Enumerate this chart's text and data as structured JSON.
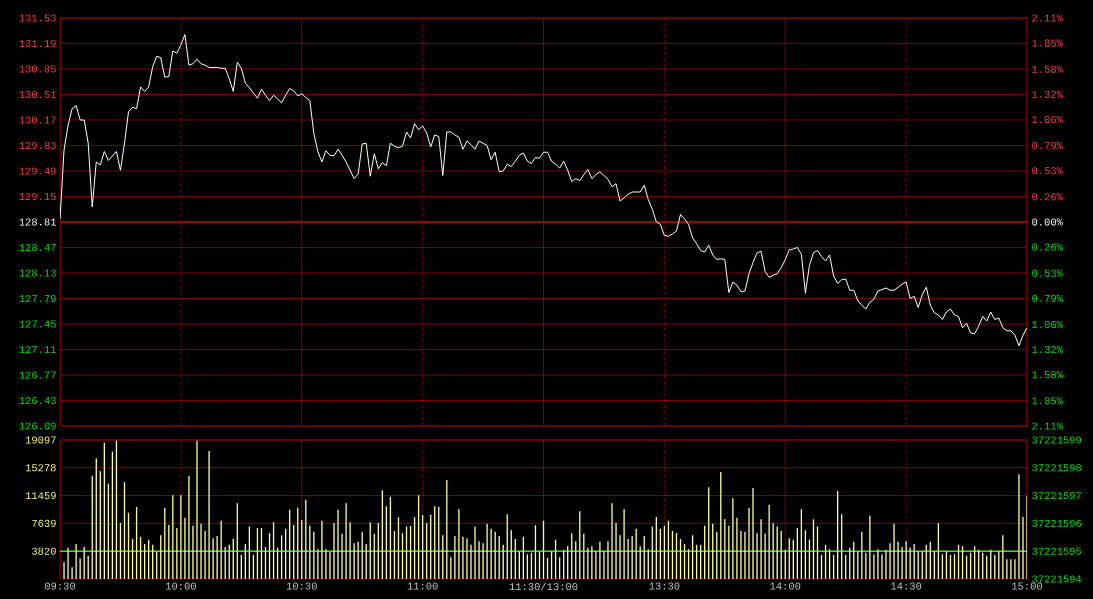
{
  "chart_data": [
    {
      "type": "line",
      "color": "#ffffff",
      "categories": [
        null,
        null,
        null,
        null,
        null,
        null,
        null,
        null,
        null,
        null,
        null,
        null,
        null,
        null,
        null,
        null,
        null,
        null,
        null,
        null,
        null,
        null,
        null,
        null,
        null,
        null,
        null,
        null,
        null,
        null,
        null,
        null,
        null,
        null,
        null,
        null,
        null,
        null,
        null,
        null,
        null,
        null,
        null,
        null,
        null,
        null,
        null,
        null,
        null,
        null,
        null,
        null,
        null,
        null,
        null,
        null,
        null,
        null,
        null,
        null,
        null,
        null,
        null,
        null,
        null,
        null,
        null,
        null,
        null,
        null,
        null,
        null,
        null,
        null,
        null,
        null,
        null,
        null,
        null,
        null,
        null,
        null,
        null,
        null,
        null,
        null,
        null,
        null,
        null,
        null,
        null,
        null,
        null,
        null,
        null,
        null,
        null,
        null,
        null,
        null,
        null,
        null,
        null,
        null,
        null,
        null,
        null,
        null,
        null,
        null,
        null,
        null,
        null,
        null,
        null,
        null,
        null,
        null,
        null,
        null,
        null,
        null,
        null,
        null,
        null,
        null,
        null,
        null,
        null,
        null,
        null,
        null,
        null,
        null,
        null,
        null,
        null,
        null,
        null,
        null,
        null,
        null,
        null,
        null,
        null,
        null,
        null,
        null,
        null,
        null,
        null,
        null,
        null,
        null,
        null,
        null,
        null,
        null,
        null,
        null,
        null,
        null,
        null,
        null,
        null,
        null,
        null,
        null,
        null,
        null,
        null,
        null,
        null,
        null,
        null,
        null,
        null,
        null,
        null,
        null,
        null,
        null,
        null,
        null,
        null,
        null,
        null,
        null,
        null,
        null,
        null,
        null,
        null,
        null,
        null,
        null,
        null,
        null,
        null,
        null,
        null,
        null,
        null,
        null,
        null,
        null,
        null,
        null,
        null,
        null,
        null,
        null,
        null,
        null,
        null,
        null,
        null,
        null,
        null,
        null,
        null,
        null,
        null,
        null,
        null,
        null,
        null,
        null,
        null,
        null,
        null,
        null,
        null,
        null,
        null,
        null,
        null,
        null,
        null,
        null,
        null
      ],
      "values": [
        128.85,
        129.77,
        130.1,
        130.32,
        130.36,
        130.17,
        130.17,
        129.86,
        129.01,
        129.61,
        129.57,
        129.75,
        129.63,
        129.69,
        129.75,
        129.5,
        129.86,
        130.28,
        130.34,
        130.32,
        130.61,
        130.55,
        130.61,
        130.88,
        131.02,
        131.0,
        130.74,
        130.75,
        131.09,
        131.06,
        131.17,
        131.31,
        130.9,
        130.92,
        130.98,
        130.92,
        130.9,
        130.87,
        130.87,
        130.87,
        130.86,
        130.86,
        130.72,
        130.55,
        130.94,
        130.86,
        130.66,
        130.6,
        130.53,
        130.46,
        130.58,
        130.5,
        130.43,
        130.5,
        130.45,
        130.4,
        130.5,
        130.59,
        130.56,
        130.49,
        130.52,
        130.47,
        130.43,
        129.99,
        129.75,
        129.61,
        129.76,
        129.7,
        129.69,
        129.78,
        129.7,
        129.61,
        129.5,
        129.39,
        129.45,
        129.85,
        129.86,
        129.42,
        129.72,
        129.52,
        129.6,
        129.56,
        129.86,
        129.82,
        129.8,
        129.82,
        130.01,
        129.93,
        130.12,
        130.04,
        130.09,
        130.0,
        129.81,
        129.97,
        129.95,
        129.43,
        130.01,
        130.01,
        129.97,
        129.94,
        129.78,
        129.89,
        129.84,
        129.78,
        129.89,
        129.86,
        129.83,
        129.64,
        129.74,
        129.48,
        129.49,
        129.58,
        129.55,
        129.62,
        129.7,
        129.73,
        129.62,
        129.59,
        129.67,
        129.66,
        129.74,
        129.74,
        129.62,
        129.58,
        129.53,
        129.62,
        129.5,
        129.35,
        129.39,
        129.36,
        129.44,
        129.51,
        129.39,
        129.44,
        129.48,
        129.43,
        129.38,
        129.28,
        129.32,
        129.09,
        129.13,
        129.18,
        129.21,
        129.21,
        129.21,
        129.3,
        129.11,
        128.98,
        128.81,
        128.78,
        128.63,
        128.62,
        128.65,
        128.69,
        128.91,
        128.85,
        128.78,
        128.6,
        128.52,
        128.43,
        128.41,
        128.5,
        128.37,
        128.31,
        128.32,
        128.31,
        127.87,
        128.01,
        127.97,
        127.88,
        127.89,
        128.12,
        128.27,
        128.4,
        128.42,
        128.15,
        128.07,
        128.1,
        128.12,
        128.2,
        128.31,
        128.44,
        128.45,
        128.47,
        128.38,
        127.86,
        128.23,
        128.4,
        128.43,
        128.35,
        128.29,
        128.37,
        128.09,
        127.99,
        128.04,
        128.05,
        127.9,
        127.9,
        127.76,
        127.7,
        127.65,
        127.74,
        127.78,
        127.89,
        127.91,
        127.93,
        127.9,
        127.9,
        127.94,
        127.98,
        128.01,
        127.79,
        127.82,
        127.67,
        127.84,
        127.94,
        127.7,
        127.6,
        127.57,
        127.51,
        127.61,
        127.65,
        127.57,
        127.55,
        127.4,
        127.46,
        127.33,
        127.32,
        127.42,
        127.55,
        127.49,
        127.61,
        127.51,
        127.53,
        127.4,
        127.36,
        127.36,
        127.3,
        127.16,
        127.3,
        127.4
      ],
      "ylim": [
        126.09,
        131.53
      ],
      "yticks": [
        126.09,
        126.43,
        126.77,
        127.11,
        127.45,
        127.79,
        128.13,
        128.47,
        128.81,
        129.15,
        129.49,
        129.83,
        130.17,
        130.51,
        130.85,
        131.19,
        131.53
      ],
      "y2lim": [
        -2.11,
        2.11
      ],
      "y2ticks": [
        {
          "value": -2.11,
          "label": "2.11%"
        },
        {
          "value": -1.85,
          "label": "1.85%"
        },
        {
          "value": -1.58,
          "label": "1.58%"
        },
        {
          "value": -1.32,
          "label": "1.32%"
        },
        {
          "value": -1.06,
          "label": "1.06%"
        },
        {
          "value": -0.79,
          "label": "0.79%"
        },
        {
          "value": -0.53,
          "label": "0.53%"
        },
        {
          "value": -0.26,
          "label": "0.26%"
        },
        {
          "value": 0,
          "label": "0.00%"
        },
        {
          "value": 0.26,
          "label": "0.26%"
        },
        {
          "value": 0.53,
          "label": "0.53%"
        },
        {
          "value": 0.79,
          "label": "0.79%"
        },
        {
          "value": 1.06,
          "label": "1.06%"
        },
        {
          "value": 1.32,
          "label": "1.32%"
        },
        {
          "value": 1.58,
          "label": "1.58%"
        },
        {
          "value": 1.85,
          "label": "1.85%"
        },
        {
          "value": 2.11,
          "label": "2.11%"
        }
      ],
      "ref_lines": [
        {
          "axis": "y",
          "value": 128.81,
          "color": "#c00000"
        }
      ],
      "grid": true,
      "tick_labels": "y"
    },
    {
      "type": "bar",
      "color": "#ffff99",
      "categories": [
        "09:30",
        null,
        null,
        null,
        null,
        null,
        null,
        null,
        null,
        null,
        null,
        null,
        null,
        null,
        null,
        null,
        null,
        null,
        null,
        null,
        null,
        null,
        null,
        null,
        null,
        null,
        null,
        null,
        null,
        null,
        "10:00",
        null,
        null,
        null,
        null,
        null,
        null,
        null,
        null,
        null,
        null,
        null,
        null,
        null,
        null,
        null,
        null,
        null,
        null,
        null,
        null,
        null,
        null,
        null,
        null,
        null,
        null,
        null,
        null,
        null,
        "10:30",
        null,
        null,
        null,
        null,
        null,
        null,
        null,
        null,
        null,
        null,
        null,
        null,
        null,
        null,
        null,
        null,
        null,
        null,
        null,
        null,
        null,
        null,
        null,
        null,
        null,
        null,
        null,
        null,
        null,
        "11:00",
        null,
        null,
        null,
        null,
        null,
        null,
        null,
        null,
        null,
        null,
        null,
        null,
        null,
        null,
        null,
        null,
        null,
        null,
        null,
        null,
        null,
        null,
        null,
        null,
        null,
        null,
        null,
        null,
        null,
        "11:30/13:00",
        null,
        null,
        null,
        null,
        null,
        null,
        null,
        null,
        null,
        null,
        null,
        null,
        null,
        null,
        null,
        null,
        null,
        null,
        null,
        null,
        null,
        null,
        null,
        null,
        null,
        null,
        null,
        null,
        null,
        "13:30",
        null,
        null,
        null,
        null,
        null,
        null,
        null,
        null,
        null,
        null,
        null,
        null,
        null,
        null,
        null,
        null,
        null,
        null,
        null,
        null,
        null,
        null,
        null,
        null,
        null,
        null,
        null,
        null,
        null,
        "14:00",
        null,
        null,
        null,
        null,
        null,
        null,
        null,
        null,
        null,
        null,
        null,
        null,
        null,
        null,
        null,
        null,
        null,
        null,
        null,
        null,
        null,
        null,
        null,
        null,
        null,
        null,
        null,
        null,
        null,
        "14:30",
        null,
        null,
        null,
        null,
        null,
        null,
        null,
        null,
        null,
        null,
        null,
        null,
        null,
        null,
        null,
        null,
        null,
        null,
        null,
        null,
        null,
        null,
        null,
        null,
        null,
        null,
        null,
        null,
        null,
        "15:00"
      ],
      "values": [
        null,
        2300,
        4300,
        1600,
        4800,
        2800,
        4400,
        3200,
        14200,
        16600,
        14800,
        18700,
        13100,
        17500,
        19000,
        7700,
        13300,
        9100,
        5500,
        9900,
        5800,
        4800,
        5400,
        4700,
        3700,
        6000,
        9800,
        7400,
        11500,
        7000,
        11500,
        8400,
        14200,
        7300,
        19000,
        7600,
        6600,
        17600,
        5600,
        5900,
        8000,
        4400,
        4700,
        5500,
        10400,
        3300,
        4800,
        7200,
        3300,
        7000,
        7000,
        4400,
        6300,
        7800,
        4300,
        6000,
        6900,
        9500,
        7400,
        9800,
        8100,
        10900,
        7300,
        6500,
        4100,
        8000,
        4100,
        3700,
        7700,
        9500,
        6200,
        10400,
        7800,
        4900,
        5100,
        6500,
        4800,
        7800,
        6200,
        7700,
        12200,
        10000,
        11300,
        6600,
        8500,
        6300,
        7200,
        7300,
        8500,
        11500,
        8800,
        7700,
        8800,
        10000,
        9900,
        6000,
        13600,
        3000,
        5900,
        9600,
        5800,
        5600,
        4700,
        7200,
        5200,
        4900,
        7600,
        6900,
        6500,
        5900,
        4700,
        8900,
        6700,
        5500,
        3800,
        5800,
        3400,
        3600,
        7400,
        3800,
        8000,
        2900,
        3800,
        5400,
        3000,
        4000,
        4500,
        6300,
        5200,
        9300,
        6200,
        4300,
        4500,
        3800,
        5100,
        3800,
        5200,
        10400,
        7700,
        6000,
        9600,
        5500,
        5900,
        6900,
        4500,
        5900,
        4100,
        7200,
        8500,
        6900,
        7300,
        8000,
        6600,
        6300,
        5500,
        4800,
        4100,
        6000,
        4700,
        4700,
        7300,
        12600,
        7600,
        6500,
        14700,
        8200,
        7300,
        11100,
        8400,
        6600,
        6500,
        9800,
        12500,
        6300,
        8200,
        6200,
        10200,
        7700,
        7200,
        6600,
        4000,
        5600,
        5400,
        7000,
        9600,
        6700,
        5400,
        8200,
        7200,
        3300,
        4700,
        4100,
        3300,
        12100,
        8900,
        3300,
        4300,
        5100,
        3800,
        6500,
        3600,
        8700,
        3400,
        4100,
        3400,
        4000,
        4900,
        7600,
        5100,
        4400,
        5200,
        4300,
        4800,
        3800,
        3800,
        4700,
        5100,
        3800,
        7700,
        3400,
        3800,
        3300,
        3400,
        4700,
        4500,
        3200,
        3600,
        4500,
        4000,
        3600,
        3200,
        4000,
        3300,
        3800,
        6000,
        2700,
        2700,
        2700,
        14400,
        8500,
        11400
      ],
      "ylim": [
        0,
        19097
      ],
      "yticks": [
        3820,
        7639,
        11459,
        15278,
        19097
      ],
      "y2lim": [
        37221594,
        37221599
      ],
      "y2ticks": [
        37221594,
        37221595,
        37221596,
        37221597,
        37221598,
        37221599
      ],
      "ref_lines": [
        {
          "axis": "y",
          "value": 3820,
          "color": "#22ee22"
        }
      ],
      "grid": true
    }
  ]
}
